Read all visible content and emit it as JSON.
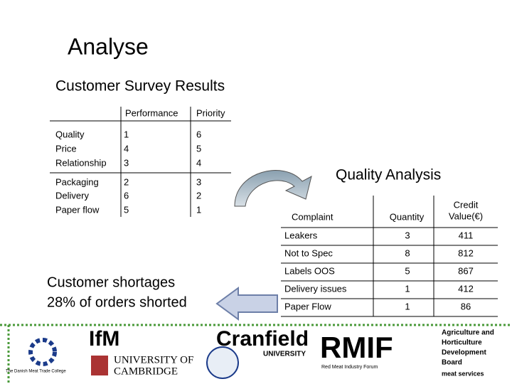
{
  "title": "Analyse",
  "survey": {
    "title": "Customer Survey Results",
    "headers": [
      "Performance",
      "Priority"
    ],
    "rows": [
      [
        "Quality",
        1,
        6
      ],
      [
        "Price",
        4,
        5
      ],
      [
        "Relationship",
        3,
        4
      ],
      [
        "Packaging",
        2,
        3
      ],
      [
        "Delivery",
        6,
        2
      ],
      [
        "Paper flow",
        5,
        1
      ]
    ]
  },
  "shortage_note": [
    "Customer shortages",
    "28% of orders shorted"
  ],
  "quality": {
    "title": "Quality Analysis",
    "headers": {
      "complaint": "Complaint",
      "quantity": "Quantity",
      "credit": [
        "Credit",
        "Value(€)"
      ]
    },
    "rows": [
      [
        "Leakers",
        3,
        411
      ],
      [
        "Not to Spec",
        8,
        812
      ],
      [
        "Labels OOS",
        5,
        867
      ],
      [
        "Delivery issues",
        1,
        412
      ],
      [
        "Paper Flow",
        1,
        86
      ]
    ]
  },
  "logos": {
    "ifm": "IfM",
    "cambridge": [
      "UNIVERSITY OF",
      "CAMBRIDGE"
    ],
    "cranfield": [
      "Cranfield",
      "UNIVERSITY"
    ],
    "rmif": [
      "RMIF",
      "Red Meat Industry Forum"
    ],
    "ahdb": [
      "Agriculture and",
      "Horticulture",
      "Development",
      "Board",
      "meat services"
    ],
    "danish": "The Danish Meat Trade College"
  }
}
